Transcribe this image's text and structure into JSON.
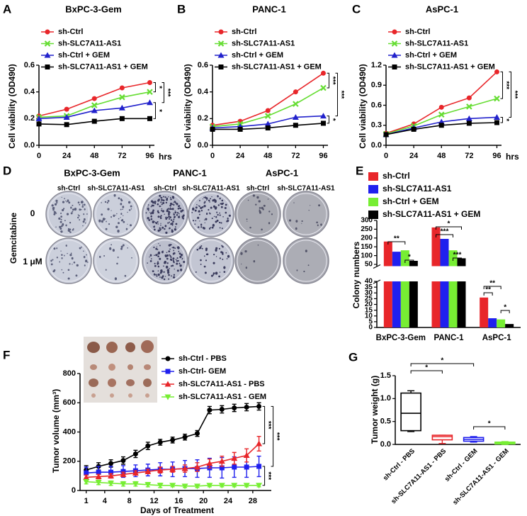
{
  "panel_d": {
    "letter": "D",
    "columns": [
      {
        "title": "BxPC-3-Gem",
        "labels": [
          "sh-Ctrl",
          "sh-SLC7A11-AS1"
        ]
      },
      {
        "title": "PANC-1",
        "labels": [
          "sh-Ctrl",
          "sh-SLC7A11-AS1"
        ]
      },
      {
        "title": "AsPC-1",
        "labels": [
          "sh-Ctrl",
          "sh-SLC7A11-AS1"
        ]
      }
    ],
    "row_title": "Gemcitabine",
    "rows": [
      "0",
      "1 μM"
    ]
  },
  "chart_data": [
    {
      "panel": "A",
      "type": "line",
      "title": "BxPC-3-Gem",
      "x": [
        0,
        24,
        48,
        72,
        96
      ],
      "xlim": [
        0,
        100
      ],
      "xticks": [
        0,
        24,
        48,
        72,
        96
      ],
      "x_label": "hrs",
      "y_label": "Cell viability (OD490)",
      "ylim": [
        0,
        0.6
      ],
      "yticks": [
        {
          "value": 0,
          "label": "0.0"
        },
        0.2,
        0.4,
        0.6
      ],
      "series": [
        {
          "name": "sh-Ctrl",
          "color": "#e8262a",
          "marker": "circle",
          "values": [
            0.22,
            0.27,
            0.35,
            0.43,
            0.47
          ]
        },
        {
          "name": "sh-SLC7A11-AS1",
          "color": "#66dd33",
          "marker": "cross",
          "values": [
            0.21,
            0.22,
            0.3,
            0.36,
            0.4
          ]
        },
        {
          "name": "sh-Ctrl + GEM",
          "color": "#2222cc",
          "marker": "triangle",
          "values": [
            0.2,
            0.21,
            0.26,
            0.28,
            0.32
          ]
        },
        {
          "name": "sh-SLC7A11-AS1 + GEM",
          "color": "#000000",
          "marker": "square",
          "values": [
            0.16,
            0.155,
            0.18,
            0.2,
            0.2
          ]
        }
      ],
      "annotations": [
        "*",
        "***",
        "*"
      ]
    },
    {
      "panel": "B",
      "type": "line",
      "title": "PANC-1",
      "x": [
        0,
        24,
        48,
        72,
        96
      ],
      "xlim": [
        0,
        100
      ],
      "xticks": [
        0,
        24,
        48,
        72,
        96
      ],
      "y_label": "Cell viability (OD490)",
      "ylim": [
        0,
        0.6
      ],
      "yticks": [
        {
          "value": 0,
          "label": "0.0"
        },
        0.2,
        0.4,
        0.6
      ],
      "series": [
        {
          "name": "sh-Ctrl",
          "color": "#e8262a",
          "marker": "circle",
          "values": [
            0.15,
            0.18,
            0.26,
            0.4,
            0.54
          ]
        },
        {
          "name": "sh-SLC7A11-AS1",
          "color": "#66dd33",
          "marker": "cross",
          "values": [
            0.14,
            0.16,
            0.22,
            0.31,
            0.43
          ]
        },
        {
          "name": "sh-Ctrl + GEM",
          "color": "#2222cc",
          "marker": "triangle",
          "values": [
            0.13,
            0.14,
            0.16,
            0.21,
            0.22
          ]
        },
        {
          "name": "sh-SLC7A11-AS1 + GEM",
          "color": "#000000",
          "marker": "square",
          "values": [
            0.12,
            0.12,
            0.13,
            0.15,
            0.165
          ]
        }
      ],
      "annotations": [
        "***",
        "***",
        "*"
      ]
    },
    {
      "panel": "C",
      "type": "line",
      "title": "AsPC-1",
      "x": [
        0,
        24,
        48,
        72,
        96
      ],
      "xlim": [
        0,
        100
      ],
      "xticks": [
        0,
        24,
        48,
        72,
        96
      ],
      "x_label": "hrs",
      "y_label": "Cell viability (OD490)",
      "ylim": [
        0,
        1.2
      ],
      "yticks": [
        {
          "value": 0,
          "label": "0.0"
        },
        0.3,
        0.6,
        0.9,
        1.2
      ],
      "series": [
        {
          "name": "sh-Ctrl",
          "color": "#e8262a",
          "marker": "circle",
          "values": [
            0.18,
            0.32,
            0.57,
            0.71,
            1.1
          ]
        },
        {
          "name": "sh-SLC7A11-AS1",
          "color": "#66dd33",
          "marker": "cross",
          "values": [
            0.17,
            0.29,
            0.46,
            0.58,
            0.7
          ]
        },
        {
          "name": "sh-Ctrl + GEM",
          "color": "#2222cc",
          "marker": "triangle",
          "values": [
            0.16,
            0.26,
            0.35,
            0.4,
            0.42
          ]
        },
        {
          "name": "sh-SLC7A11-AS1 + GEM",
          "color": "#000000",
          "marker": "square",
          "values": [
            0.16,
            0.24,
            0.3,
            0.33,
            0.34
          ]
        }
      ],
      "annotations": [
        "***",
        "***",
        "*"
      ]
    },
    {
      "panel": "E",
      "type": "bar",
      "categories": [
        "BxPC-3-Gem",
        "PANC-1",
        "AsPC-1"
      ],
      "y_label": "Colony numbers",
      "ylim": [
        0,
        300
      ],
      "ybreak": 40,
      "yticks": [
        0,
        5,
        10,
        15,
        20,
        25,
        30,
        35,
        40,
        50,
        100,
        150,
        200,
        250,
        300
      ],
      "series": [
        {
          "name": "sh-Ctrl",
          "color": "#e8262a",
          "values": [
            180,
            260,
            26
          ]
        },
        {
          "name": "sh-SLC7A11-AS1",
          "color": "#2020ee",
          "values": [
            122,
            195,
            8
          ]
        },
        {
          "name": "sh-Ctrl + GEM",
          "color": "#77ee33",
          "values": [
            130,
            130,
            7
          ]
        },
        {
          "name": "sh-SLC7A11-AS1 + GEM",
          "color": "#000000",
          "values": [
            70,
            85,
            3
          ]
        }
      ],
      "annotations": [
        "**",
        "*",
        "*",
        "***",
        "***",
        "**",
        "**",
        "*"
      ]
    },
    {
      "panel": "F",
      "type": "line",
      "x": [
        1,
        3,
        5,
        7,
        9,
        11,
        13,
        15,
        17,
        19,
        21,
        23,
        25,
        27,
        29
      ],
      "xlim": [
        0,
        31
      ],
      "xticks": [
        1,
        4,
        8,
        12,
        16,
        20,
        24,
        28
      ],
      "x_label": "Days of Treatment",
      "y_label": "Tumor volume (mm³)",
      "ylim": [
        0,
        800
      ],
      "yticks": [
        0,
        200,
        400,
        600,
        800
      ],
      "series": [
        {
          "name": "sh-Ctrl - PBS",
          "color": "#000000",
          "marker": "circle",
          "values": [
            140,
            165,
            185,
            205,
            250,
            305,
            330,
            345,
            365,
            390,
            550,
            555,
            565,
            570,
            575
          ],
          "errors": [
            30,
            25,
            25,
            25,
            25,
            25,
            20,
            20,
            20,
            20,
            25,
            25,
            25,
            25,
            25
          ]
        },
        {
          "name": "sh-Ctrl- GEM",
          "color": "#2020ee",
          "marker": "square",
          "values": [
            120,
            125,
            125,
            130,
            135,
            140,
            145,
            145,
            150,
            150,
            155,
            155,
            160,
            160,
            165
          ],
          "errors": [
            40,
            40,
            40,
            40,
            40,
            40,
            45,
            50,
            55,
            60,
            65,
            70,
            70,
            70,
            70
          ]
        },
        {
          "name": "sh-SLC7A11-AS1 - PBS",
          "color": "#e8262a",
          "marker": "triangle",
          "values": [
            90,
            95,
            100,
            110,
            120,
            130,
            140,
            145,
            150,
            160,
            185,
            200,
            220,
            240,
            320
          ],
          "errors": [
            15,
            15,
            15,
            15,
            15,
            15,
            20,
            20,
            25,
            30,
            30,
            35,
            40,
            45,
            50
          ]
        },
        {
          "name": "sh-SLC7A11-AS1 - GEM",
          "color": "#77ee33",
          "marker": "triangle-down",
          "values": [
            60,
            55,
            50,
            45,
            45,
            40,
            35,
            35,
            30,
            30,
            35,
            35,
            35,
            35,
            35
          ],
          "errors": [
            15,
            15,
            15,
            15,
            15,
            15,
            15,
            10,
            10,
            10,
            10,
            10,
            10,
            10,
            10
          ]
        }
      ],
      "annotations": [
        "***",
        "***",
        "***"
      ]
    },
    {
      "panel": "G",
      "type": "box",
      "categories": [
        "sh-Ctrl - PBS",
        "sh-SLC7A11-AS1 - PBS",
        "sh-Ctrl - GEM",
        "sh-SLC7A11-AS1 - GEM"
      ],
      "y_label": "Tumor weight (g)",
      "ylim": [
        0,
        1.5
      ],
      "yticks": [
        {
          "value": 0,
          "label": "0.0"
        },
        0.5,
        {
          "value": 1,
          "label": "1.0"
        },
        1.5
      ],
      "colors": [
        "#000000",
        "#e8262a",
        "#2020ee",
        "#77ee33"
      ],
      "boxes": [
        [
          0.28,
          0.3,
          0.68,
          1.12,
          1.17
        ],
        [
          0.02,
          0.1,
          0.17,
          0.2,
          0.2
        ],
        [
          0.05,
          0.07,
          0.11,
          0.15,
          0.17
        ],
        [
          0.0,
          0.01,
          0.03,
          0.05,
          0.06
        ]
      ],
      "annotations": [
        "*",
        "*",
        "*"
      ]
    }
  ]
}
